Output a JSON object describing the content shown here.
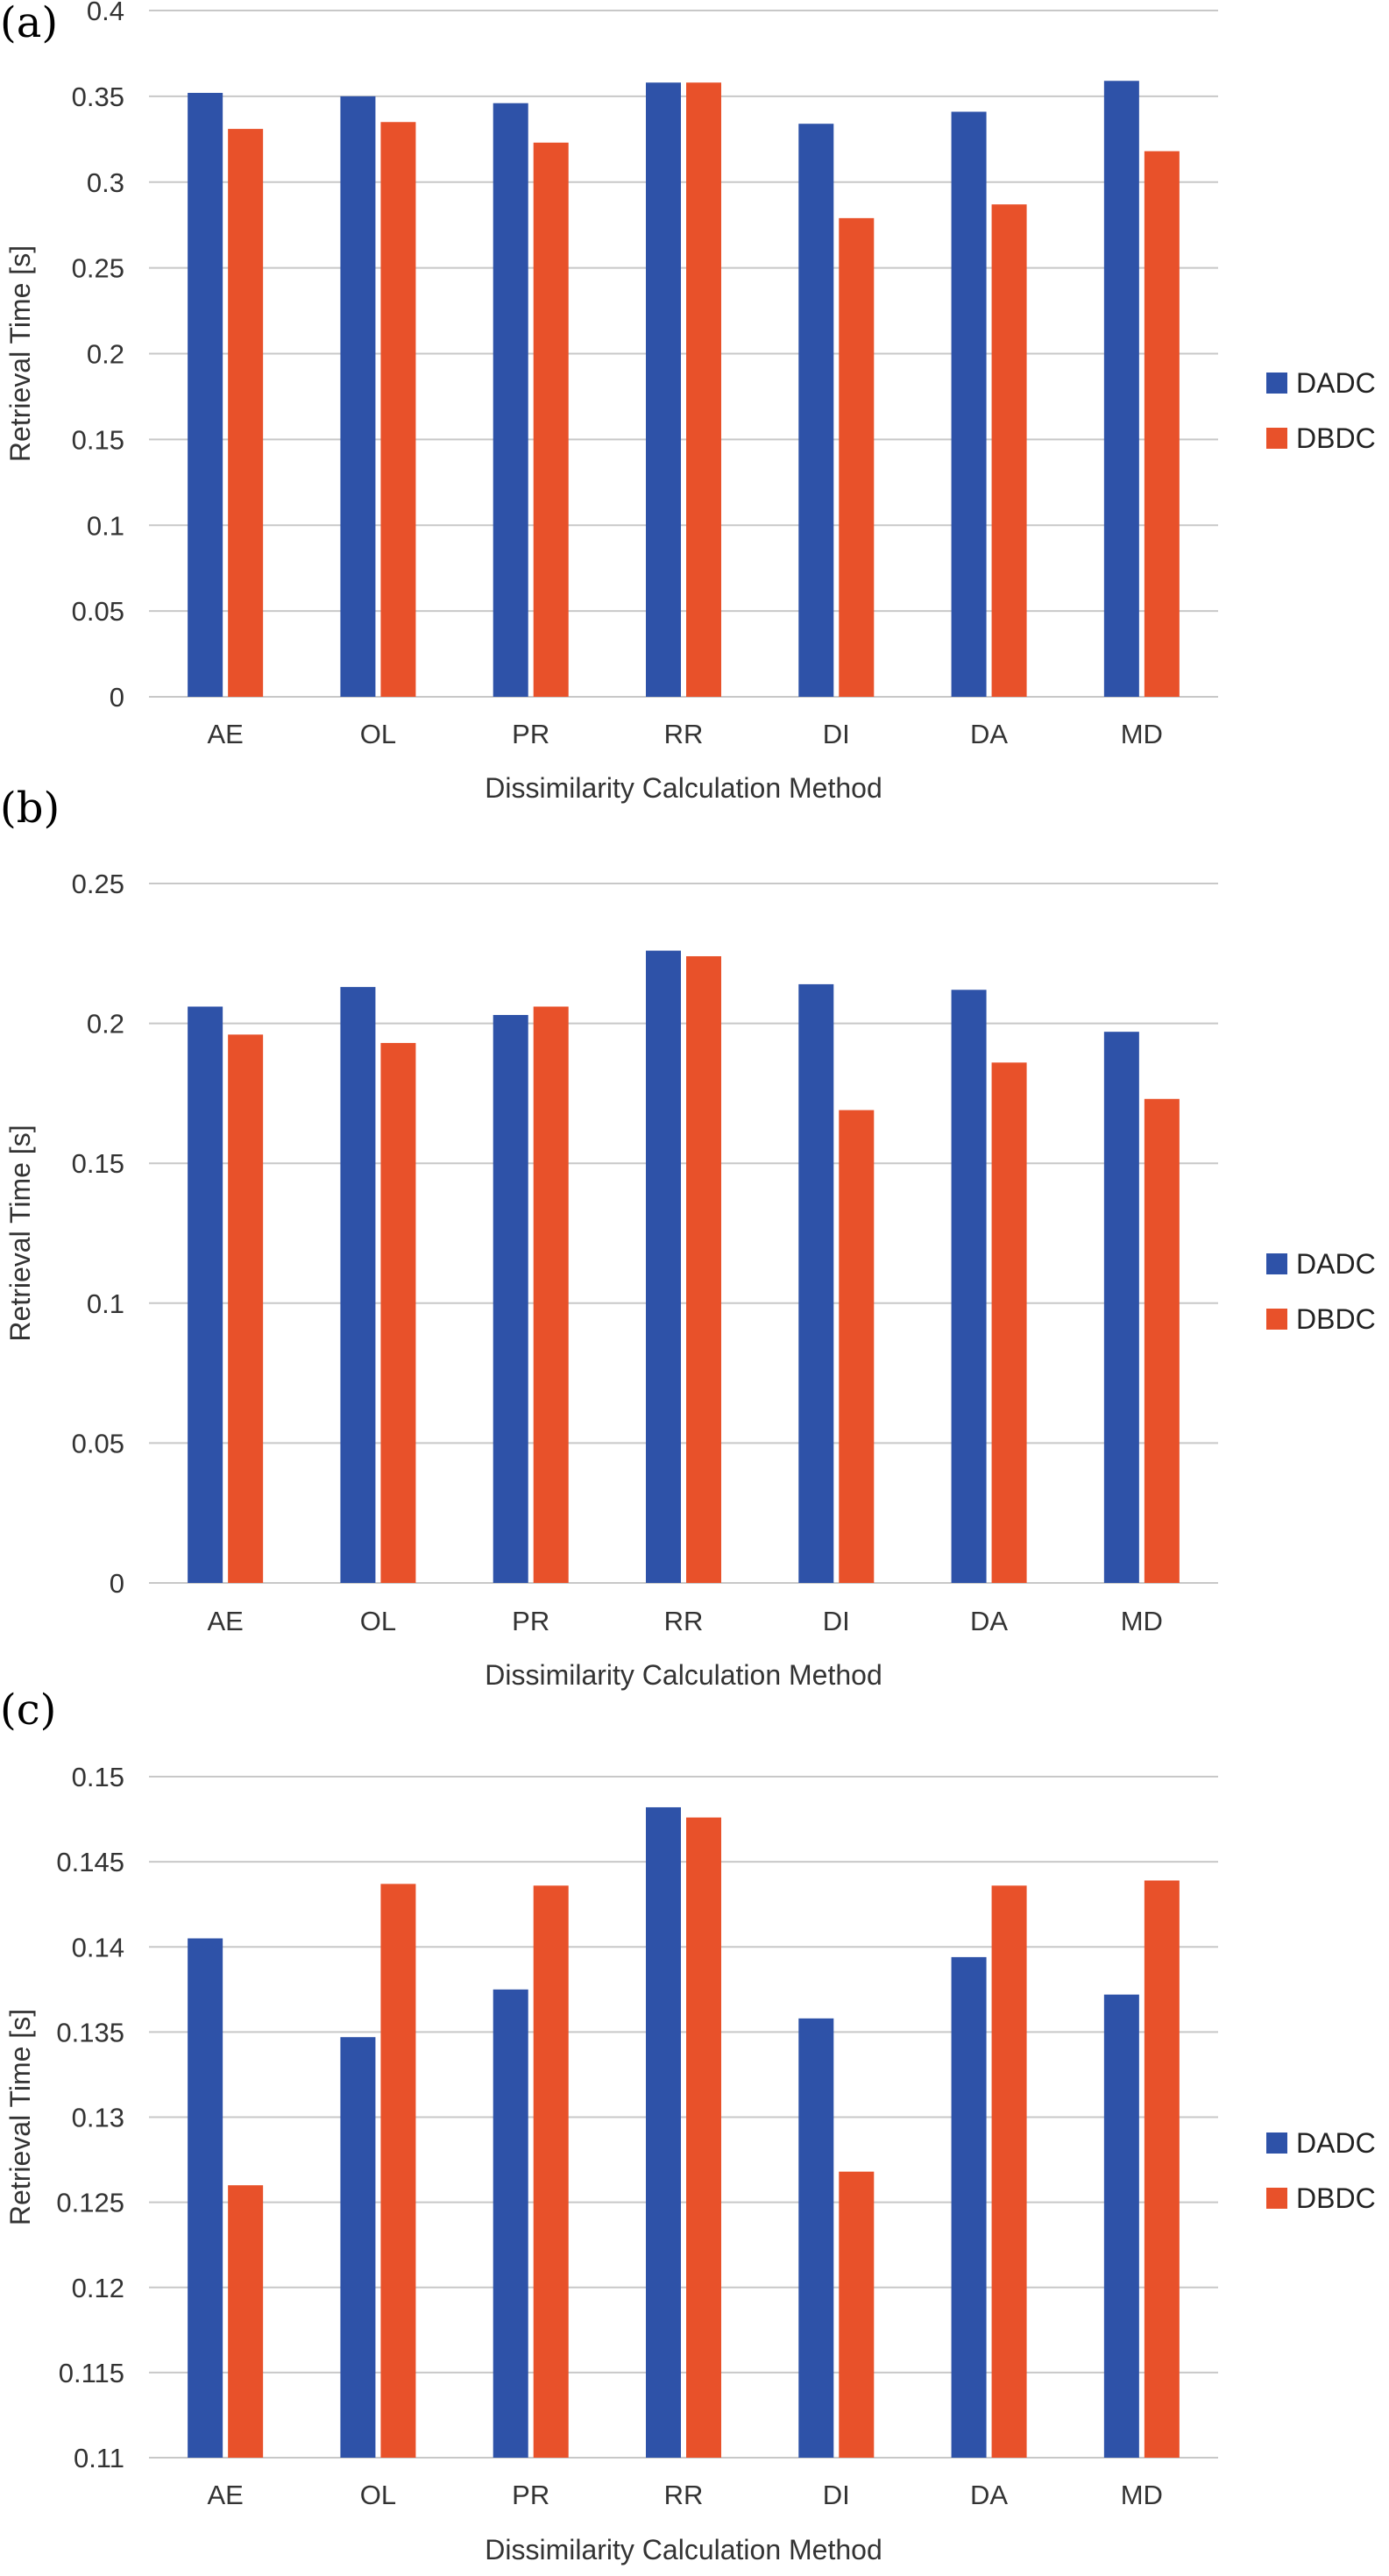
{
  "legend_position": "right",
  "colors": {
    "DADC": "#2E52A8",
    "DBDC": "#E8512A",
    "grid": "#C8C8C8"
  },
  "chart_data": [
    {
      "panel_label": "(a)",
      "type": "bar",
      "categories": [
        "AE",
        "OL",
        "PR",
        "RR",
        "DI",
        "DA",
        "MD"
      ],
      "series": [
        {
          "name": "DADC",
          "values": [
            0.352,
            0.35,
            0.346,
            0.358,
            0.334,
            0.341,
            0.359
          ]
        },
        {
          "name": "DBDC",
          "values": [
            0.331,
            0.335,
            0.323,
            0.358,
            0.279,
            0.287,
            0.318
          ]
        }
      ],
      "xlabel": "Dissimilarity Calculation Method",
      "ylabel": "Retrieval Time [s]",
      "ylim": [
        0,
        0.4
      ],
      "yticks": [
        "0",
        "0.05",
        "0.1",
        "0.15",
        "0.2",
        "0.25",
        "0.3",
        "0.35",
        "0.4"
      ],
      "grid": true
    },
    {
      "panel_label": "(b)",
      "type": "bar",
      "categories": [
        "AE",
        "OL",
        "PR",
        "RR",
        "DI",
        "DA",
        "MD"
      ],
      "series": [
        {
          "name": "DADC",
          "values": [
            0.206,
            0.213,
            0.203,
            0.226,
            0.214,
            0.212,
            0.197
          ]
        },
        {
          "name": "DBDC",
          "values": [
            0.196,
            0.193,
            0.206,
            0.224,
            0.169,
            0.186,
            0.173
          ]
        }
      ],
      "xlabel": "Dissimilarity Calculation Method",
      "ylabel": "Retrieval Time [s]",
      "ylim": [
        0,
        0.25
      ],
      "yticks": [
        "0",
        "0.05",
        "0.1",
        "0.15",
        "0.2",
        "0.25"
      ],
      "grid": true
    },
    {
      "panel_label": "(c)",
      "type": "bar",
      "categories": [
        "AE",
        "OL",
        "PR",
        "RR",
        "DI",
        "DA",
        "MD"
      ],
      "series": [
        {
          "name": "DADC",
          "values": [
            0.1405,
            0.1347,
            0.1375,
            0.1482,
            0.1358,
            0.1394,
            0.1372
          ]
        },
        {
          "name": "DBDC",
          "values": [
            0.126,
            0.1437,
            0.1436,
            0.1476,
            0.1268,
            0.1436,
            0.1439
          ]
        }
      ],
      "xlabel": "Dissimilarity Calculation Method",
      "ylabel": "Retrieval Time [s]",
      "ylim": [
        0.11,
        0.15
      ],
      "yticks": [
        "0.11",
        "0.115",
        "0.12",
        "0.125",
        "0.13",
        "0.135",
        "0.14",
        "0.145",
        "0.15"
      ],
      "grid": true
    }
  ]
}
